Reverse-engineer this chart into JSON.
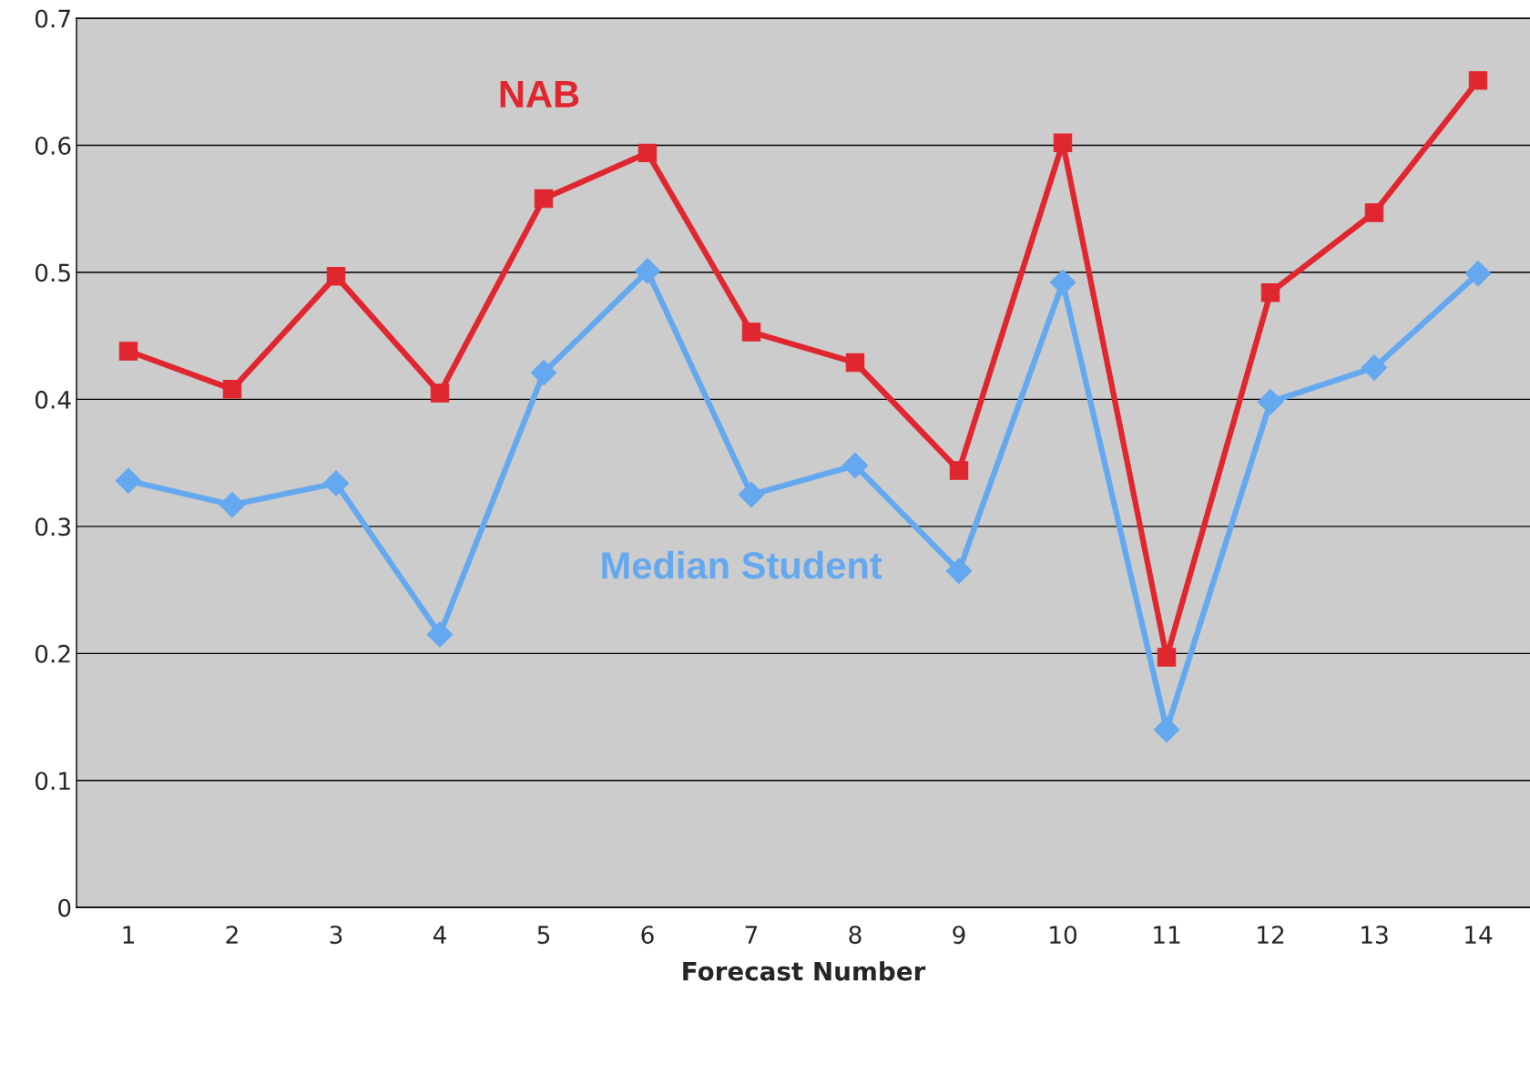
{
  "chart_data": {
    "type": "line",
    "xlabel": "Forecast Number",
    "categories": [
      "1",
      "2",
      "3",
      "4",
      "5",
      "6",
      "7",
      "8",
      "9",
      "10",
      "11",
      "12",
      "13",
      "14"
    ],
    "series": [
      {
        "name": "NAB",
        "color": "#e0262f",
        "marker": "square",
        "values": [
          0.438,
          0.408,
          0.497,
          0.405,
          0.558,
          0.594,
          0.453,
          0.429,
          0.344,
          0.602,
          0.197,
          0.484,
          0.547,
          0.651
        ]
      },
      {
        "name": "Median Student",
        "color": "#64a8f0",
        "marker": "diamond",
        "values": [
          0.336,
          0.317,
          0.334,
          0.215,
          0.421,
          0.501,
          0.325,
          0.348,
          0.265,
          0.492,
          0.14,
          0.398,
          0.425,
          0.499
        ]
      }
    ],
    "ylim": [
      0,
      0.7
    ],
    "yticks": [
      0,
      0.1,
      0.2,
      0.3,
      0.4,
      0.5,
      0.6,
      0.7
    ],
    "grid": "y",
    "legend": false
  }
}
